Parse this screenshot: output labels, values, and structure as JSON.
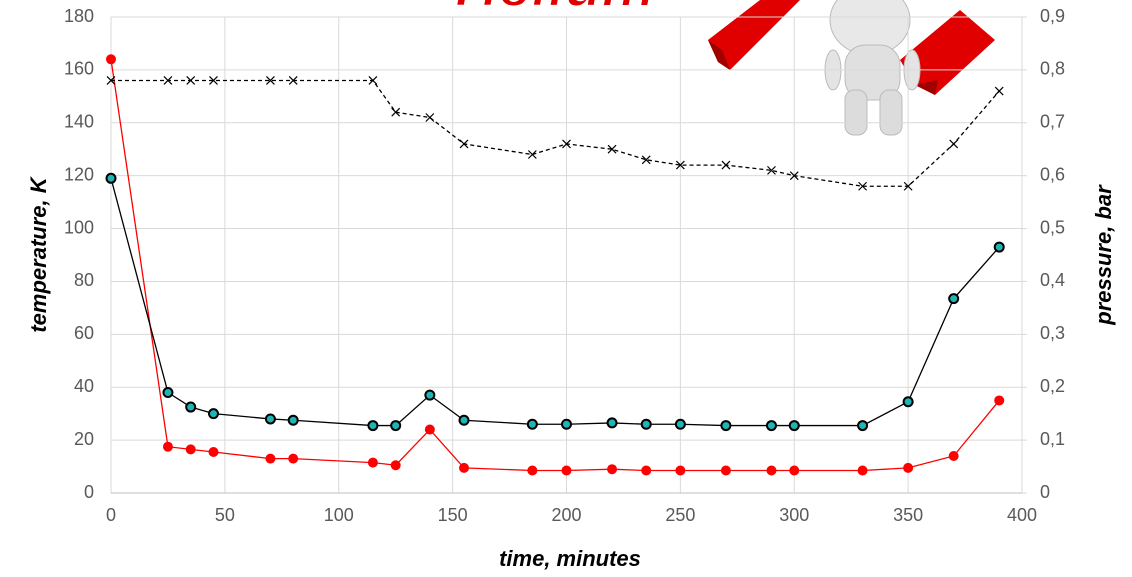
{
  "chart_data": {
    "type": "line",
    "title": "Helium",
    "x_label": "time, minutes",
    "y_label": "temperature, K",
    "y2_label": "pressure, bar",
    "x": [
      0,
      25,
      35,
      45,
      70,
      80,
      115,
      125,
      140,
      155,
      185,
      200,
      220,
      235,
      250,
      270,
      290,
      300,
      330,
      350,
      370,
      390
    ],
    "series": [
      {
        "color": "#ff0000",
        "marker": "circle",
        "values": [
          164,
          17.5,
          16.5,
          15.5,
          13,
          13,
          11.5,
          10.5,
          24,
          9.5,
          8.5,
          8.5,
          9,
          8.5,
          8.5,
          8.5,
          8.5,
          8.5,
          8.5,
          9.5,
          14,
          35
        ]
      },
      {
        "color": "#000000",
        "marker": "dot",
        "values": [
          119,
          38,
          32.5,
          30,
          28,
          27.5,
          25.5,
          25.5,
          37,
          27.5,
          26,
          26,
          26.5,
          26,
          26,
          25.5,
          25.5,
          25.5,
          25.5,
          34.5,
          73.5,
          93
        ]
      },
      {
        "color": "#000000",
        "marker": "x",
        "dashed": true,
        "axis": "y2",
        "values": [
          0.78,
          0.78,
          0.78,
          0.78,
          0.78,
          0.78,
          0.78,
          0.72,
          0.71,
          0.66,
          0.64,
          0.66,
          0.65,
          0.63,
          0.62,
          0.62,
          0.61,
          0.6,
          0.58,
          0.58,
          0.66,
          0.76
        ]
      }
    ],
    "xlim": [
      0,
      400
    ],
    "xticks": [
      0,
      50,
      100,
      150,
      200,
      250,
      300,
      350,
      400
    ],
    "ylim": [
      0,
      180
    ],
    "yticks": [
      0,
      20,
      40,
      60,
      80,
      100,
      120,
      140,
      160,
      180
    ],
    "y2lim": [
      0,
      0.9
    ],
    "y2ticks": [
      0,
      {
        "value": 0.1,
        "label": "0,1"
      },
      {
        "value": 0.2,
        "label": "0,2"
      },
      {
        "value": 0.3,
        "label": "0,3"
      },
      {
        "value": 0.4,
        "label": "0,4"
      },
      {
        "value": 0.5,
        "label": "0,5"
      },
      {
        "value": 0.6,
        "label": "0,6"
      },
      {
        "value": 0.7,
        "label": "0,7"
      },
      {
        "value": 0.8,
        "label": "0,8"
      },
      {
        "value": 0.9,
        "label": "0,9"
      }
    ],
    "grid": true
  }
}
